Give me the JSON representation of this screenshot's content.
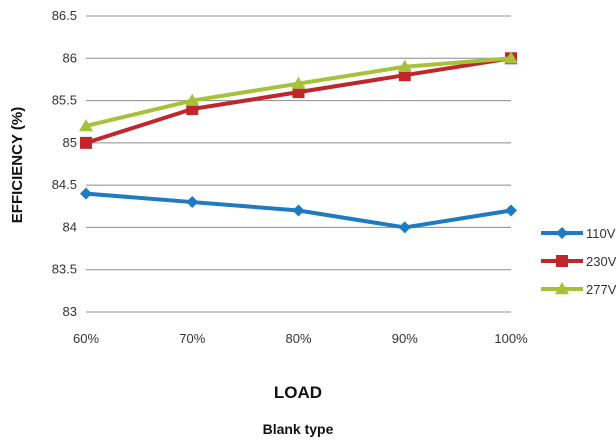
{
  "chart_data": {
    "type": "line",
    "categories": [
      "60%",
      "70%",
      "80%",
      "90%",
      "100%"
    ],
    "series": [
      {
        "name": "110V",
        "values": [
          84.4,
          84.3,
          84.2,
          84.0,
          84.2
        ],
        "color": "#1F7BC1",
        "marker": "diamond"
      },
      {
        "name": "230V",
        "values": [
          85.0,
          85.4,
          85.6,
          85.8,
          86.0
        ],
        "color": "#C0262B",
        "marker": "square"
      },
      {
        "name": "277V",
        "values": [
          85.2,
          85.5,
          85.7,
          85.9,
          86.0
        ],
        "color": "#A6C23A",
        "marker": "triangle"
      }
    ],
    "ylim": [
      83,
      86.5
    ],
    "yticks": [
      "83",
      "83.5",
      "84",
      "84.5",
      "85",
      "85.5",
      "86",
      "86.5"
    ],
    "ylabel": "EFFICIENCY (%)",
    "xlabel": "LOAD",
    "subtitle": "Blank type",
    "grid": "horizontal",
    "legend_position": "right"
  }
}
